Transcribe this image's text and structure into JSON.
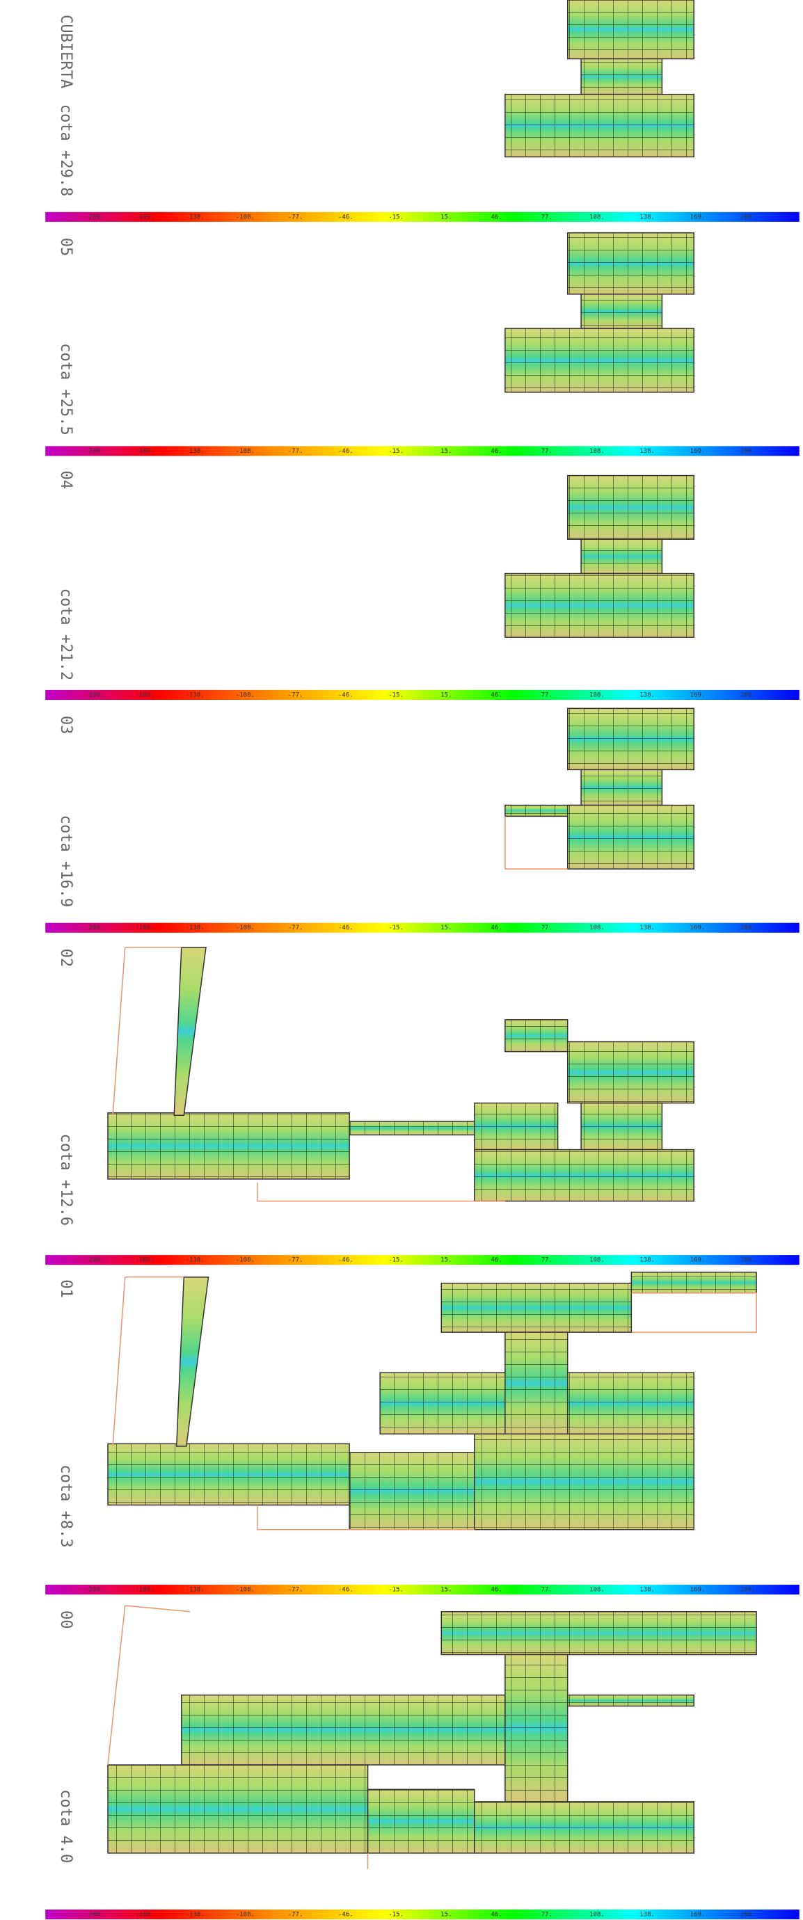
{
  "colorbar": {
    "labels": [
      "-200.",
      "-169.",
      "-138.",
      "-108.",
      "-77.",
      "-46.",
      "-15.",
      "15.",
      "46.",
      "77.",
      "108.",
      "138.",
      "169.",
      "200."
    ]
  },
  "panels": [
    {
      "level": "CUBIERTA",
      "elevation": "cota +29.8"
    },
    {
      "level": "05",
      "elevation": "cota +25.5"
    },
    {
      "level": "04",
      "elevation": "cota +21.2"
    },
    {
      "level": "03",
      "elevation": "cota +16.9"
    },
    {
      "level": "02",
      "elevation": "cota +12.6"
    },
    {
      "level": "01",
      "elevation": "cota +8.3"
    },
    {
      "level": "00",
      "elevation": "cota 4.0"
    }
  ]
}
